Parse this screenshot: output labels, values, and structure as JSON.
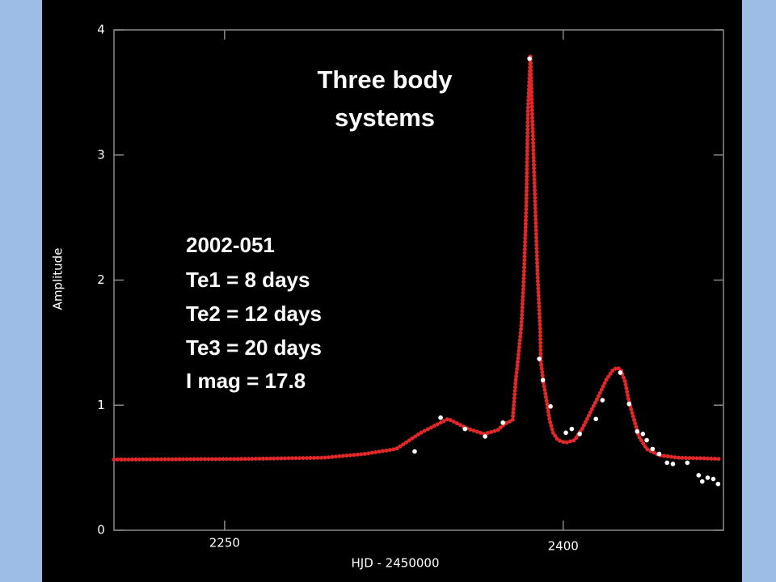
{
  "chart_data": {
    "type": "scatter",
    "x_label": "HJD - 2450000",
    "y_label": "Amplitude",
    "annotations": [
      "Three body",
      "systems",
      "2002-051",
      "Te1 = 8 days",
      "Te2 = 12 days",
      "Te3 = 20 days",
      "I mag = 17.8"
    ],
    "xlim": [
      2201,
      2471
    ],
    "ylim": [
      0,
      4
    ],
    "xticks": [
      2250,
      2400
    ],
    "yticks": [
      0,
      1,
      2,
      3,
      4
    ],
    "series": [
      {
        "name": "model",
        "color": "#e02828",
        "style": "dotted",
        "x": [
          2201,
          2258,
          2294,
          2312,
          2326,
          2337,
          2349,
          2358,
          2365,
          2371,
          2374,
          2377.6,
          2379,
          2380,
          2381.5,
          2382.6,
          2383.7,
          2384.4,
          2385.5,
          2386.2,
          2387.6,
          2388.7,
          2389.8,
          2390.1,
          2391.2,
          2392.6,
          2394,
          2395.5,
          2397.7,
          2401,
          2405,
          2408.4,
          2412,
          2415.6,
          2419,
          2422,
          2424,
          2425.6,
          2427.4,
          2429,
          2431,
          2433.5,
          2437,
          2442.5,
          2451,
          2462,
          2470
        ],
        "values": [
          0.565,
          0.57,
          0.58,
          0.61,
          0.65,
          0.78,
          0.89,
          0.81,
          0.77,
          0.8,
          0.85,
          0.88,
          1.2,
          1.37,
          1.64,
          2.03,
          2.62,
          3.36,
          3.79,
          3.36,
          2.6,
          2.02,
          1.61,
          1.35,
          1.19,
          1.04,
          0.88,
          0.78,
          0.72,
          0.7,
          0.72,
          0.81,
          0.94,
          1.07,
          1.2,
          1.28,
          1.3,
          1.28,
          1.19,
          1.04,
          0.91,
          0.75,
          0.65,
          0.6,
          0.58,
          0.575,
          0.57
        ]
      },
      {
        "name": "observed",
        "color": "#ffffff",
        "style": "points",
        "x": [
          2334.2,
          2345.7,
          2356.5,
          2365.4,
          2373.3,
          2385.1,
          2389.4,
          2391,
          2394.4,
          2401.2,
          2403.8,
          2407.3,
          2414.5,
          2417.4,
          2425.3,
          2429.2,
          2432.8,
          2435.3,
          2437,
          2439.6,
          2442.5,
          2446,
          2448.6,
          2455,
          2460,
          2461.6,
          2464,
          2466.5,
          2468.6
        ],
        "values": [
          0.63,
          0.9,
          0.81,
          0.75,
          0.86,
          3.77,
          1.37,
          1.2,
          0.99,
          0.78,
          0.81,
          0.77,
          0.89,
          1.04,
          1.26,
          1.01,
          0.79,
          0.77,
          0.72,
          0.65,
          0.61,
          0.54,
          0.53,
          0.54,
          0.44,
          0.39,
          0.42,
          0.41,
          0.37
        ]
      }
    ]
  }
}
